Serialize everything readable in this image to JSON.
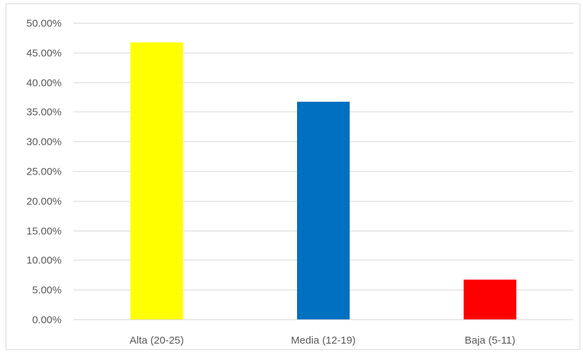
{
  "chart_data": {
    "type": "bar",
    "categories": [
      "Alta (20-25)",
      "Media (12-19)",
      "Baja (5-11)"
    ],
    "values": [
      46.7,
      36.7,
      6.7
    ],
    "colors": [
      "#ffff00",
      "#0070c0",
      "#ff0000"
    ],
    "ylim": [
      0,
      50
    ],
    "y_ticks": [
      0,
      5,
      10,
      15,
      20,
      25,
      30,
      35,
      40,
      45,
      50
    ],
    "y_tick_labels": [
      "0.00%",
      "5.00%",
      "10.00%",
      "15.00%",
      "20.00%",
      "25.00%",
      "30.00%",
      "35.00%",
      "40.00%",
      "45.00%",
      "50.00%"
    ],
    "grid": true,
    "legend": "none",
    "title": "",
    "xlabel": "",
    "ylabel": ""
  }
}
